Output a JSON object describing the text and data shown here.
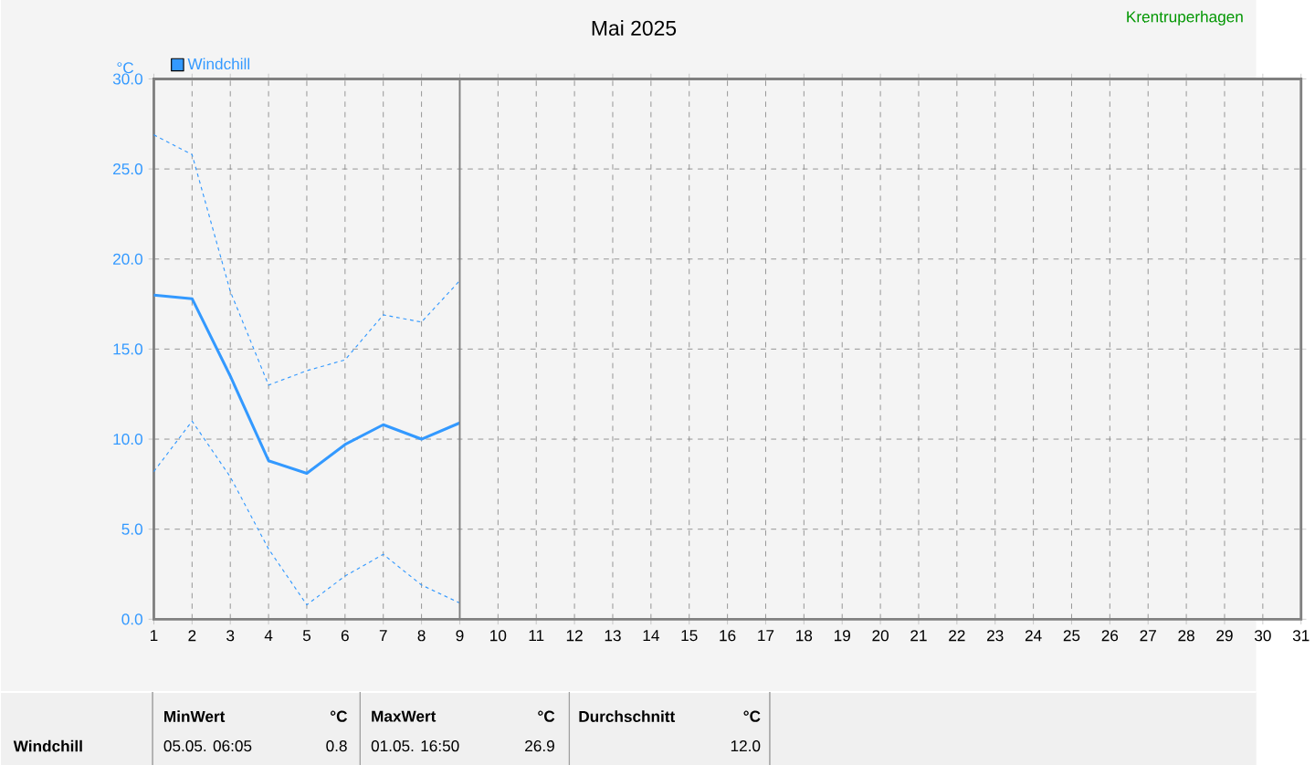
{
  "chart_data": {
    "type": "line",
    "title": "Mai 2025",
    "subtitle": "Krentruperhagen",
    "ylabel": "°C",
    "x": [
      1,
      2,
      3,
      4,
      5,
      6,
      7,
      8,
      9
    ],
    "series": [
      {
        "name": "Windchill",
        "color": "#3399ff",
        "line_style": "solid",
        "values": [
          18.0,
          17.8,
          13.5,
          8.8,
          8.1,
          9.7,
          10.8,
          10.0,
          10.9
        ]
      },
      {
        "color": "#3399ff",
        "line_style": "dashed",
        "values": [
          26.9,
          25.8,
          18.2,
          13.0,
          13.8,
          14.4,
          16.9,
          16.5,
          18.8
        ]
      },
      {
        "color": "#3399ff",
        "line_style": "dashed",
        "values": [
          8.2,
          11.0,
          7.9,
          3.9,
          0.8,
          2.4,
          3.6,
          1.9,
          0.9
        ]
      }
    ],
    "xlim": [
      1,
      31
    ],
    "xticks": [
      1,
      2,
      3,
      4,
      5,
      6,
      7,
      8,
      9,
      10,
      11,
      12,
      13,
      14,
      15,
      16,
      17,
      18,
      19,
      20,
      21,
      22,
      23,
      24,
      25,
      26,
      27,
      28,
      29,
      30,
      31
    ],
    "ylim": [
      0,
      30
    ],
    "yticks": [
      {
        "value": 0,
        "label": "0.0"
      },
      {
        "value": 5,
        "label": "5.0"
      },
      {
        "value": 10,
        "label": "10.0"
      },
      {
        "value": 15,
        "label": "15.0"
      },
      {
        "value": 20,
        "label": "20.0"
      },
      {
        "value": 25,
        "label": "25.0"
      },
      {
        "value": 30,
        "label": "30.0"
      }
    ],
    "grid": true,
    "legend": "top left",
    "marker": "none",
    "ref_lines": [
      {
        "axis": "x",
        "value": 9,
        "color": "#808080"
      }
    ],
    "annotations": [
      "Windchill",
      "MinWert",
      "°C",
      "05.05.  06:05",
      "0.8",
      "MaxWert",
      "°C",
      "01.05.  16:50",
      "26.9",
      "Durchschnitt",
      "°C",
      "12.0"
    ]
  }
}
